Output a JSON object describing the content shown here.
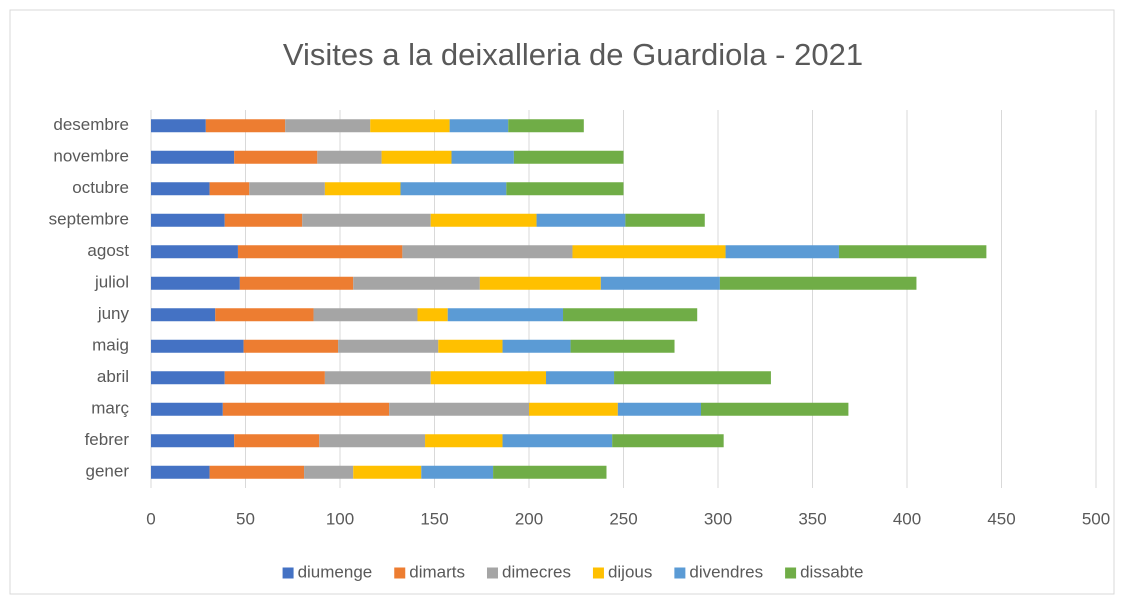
{
  "chart_data": {
    "type": "stacked_barh",
    "title": "Visites a la deixalleria de Guardiola - 2021",
    "categories": [
      "gener",
      "febrer",
      "març",
      "abril",
      "maig",
      "juny",
      "juliol",
      "agost",
      "septembre",
      "octubre",
      "novembre",
      "desembre"
    ],
    "series": [
      {
        "name": "diumenge",
        "color": "#4472c4",
        "values": [
          31,
          44,
          38,
          39,
          49,
          34,
          47,
          46,
          39,
          31,
          44,
          29
        ]
      },
      {
        "name": "dimarts",
        "color": "#ed7d31",
        "values": [
          50,
          45,
          88,
          53,
          50,
          52,
          60,
          87,
          41,
          21,
          44,
          42
        ]
      },
      {
        "name": "dimecres",
        "color": "#a5a5a5",
        "values": [
          26,
          56,
          74,
          56,
          53,
          55,
          67,
          90,
          68,
          40,
          34,
          45
        ]
      },
      {
        "name": "dijous",
        "color": "#ffc000",
        "values": [
          36,
          41,
          47,
          61,
          34,
          16,
          64,
          81,
          56,
          40,
          37,
          42
        ]
      },
      {
        "name": "divendres",
        "color": "#5b9bd5",
        "values": [
          38,
          58,
          44,
          36,
          36,
          61,
          63,
          60,
          47,
          56,
          33,
          31
        ]
      },
      {
        "name": "dissabte",
        "color": "#70ad47",
        "values": [
          60,
          59,
          78,
          83,
          55,
          71,
          104,
          78,
          42,
          62,
          58,
          40
        ]
      }
    ],
    "xlim": [
      0,
      500
    ],
    "xticks": [
      0,
      50,
      100,
      150,
      200,
      250,
      300,
      350,
      400,
      450,
      500
    ],
    "grid": true,
    "legend": "bottom"
  }
}
